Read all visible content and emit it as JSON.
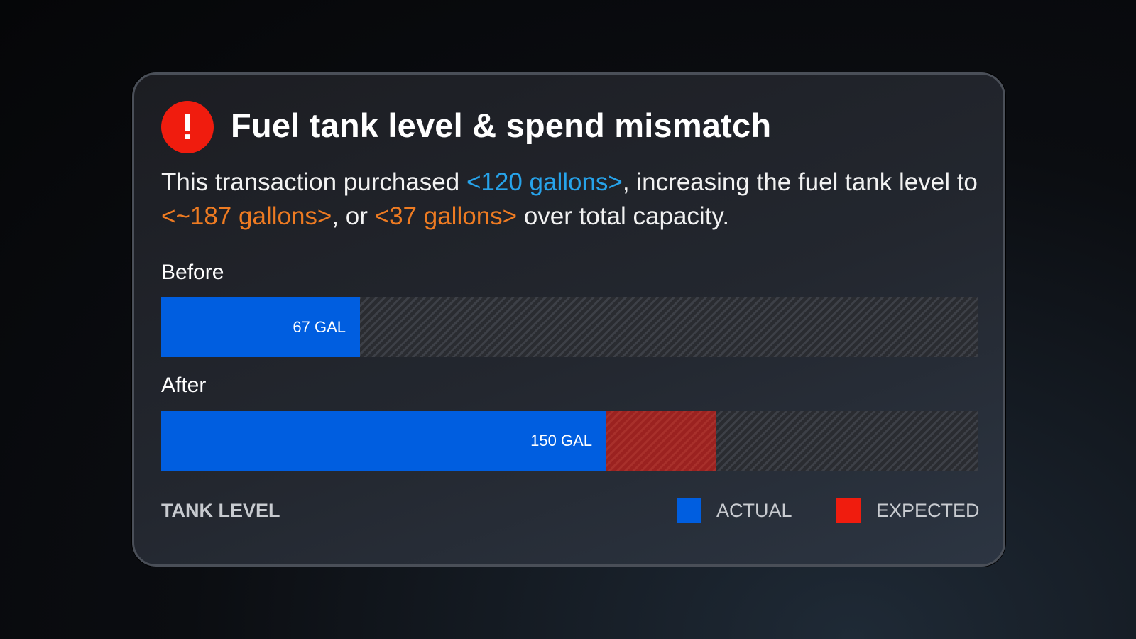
{
  "alert": {
    "icon": "exclamation-icon",
    "icon_glyph": "!",
    "title": "Fuel tank level & spend mismatch"
  },
  "description": {
    "p1": "This transaction purchased ",
    "purchased": "<120 gallons>",
    "p2": ", increasing the fuel tank level to ",
    "level": "<~187 gallons>",
    "p3": ", or ",
    "over": "<37 gallons>",
    "p4": " over total capacity."
  },
  "chart_data": {
    "type": "bar",
    "scale_max": 275,
    "rows": [
      {
        "label": "Before",
        "actual": 67,
        "actual_label": "67 GAL"
      },
      {
        "label": "After",
        "actual": 150,
        "actual_label": "150 GAL",
        "expected": 187
      }
    ],
    "legend": {
      "title": "TANK LEVEL",
      "actual": "ACTUAL",
      "expected": "EXPECTED"
    },
    "colors": {
      "actual": "#005ee0",
      "expected": "#f01c0e"
    }
  }
}
